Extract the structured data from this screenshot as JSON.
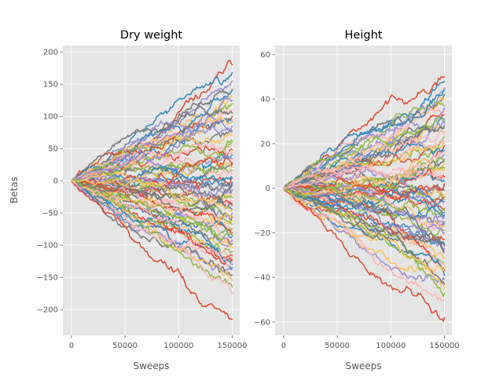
{
  "colors": {
    "background": "#ffffff",
    "axes_face": "#e5e5e5",
    "grid": "#ffffff",
    "tick_text": "#555555",
    "cycle": [
      "#E24A33",
      "#348ABD",
      "#988ED5",
      "#777777",
      "#FBC15E",
      "#8EBA42",
      "#FFB5B8"
    ]
  },
  "chart_data": [
    {
      "type": "line",
      "title": "Dry weight",
      "xlabel": "Sweeps",
      "ylabel": "Betas",
      "xlim": [
        -8000,
        157000
      ],
      "ylim": [
        -240,
        210
      ],
      "xticks": [
        0,
        50000,
        100000,
        150000
      ],
      "xtick_labels": [
        "0",
        "50000",
        "100000",
        "150000"
      ],
      "yticks": [
        -200,
        -150,
        -100,
        -50,
        0,
        50,
        100,
        150,
        200
      ],
      "ytick_labels": [
        "−200",
        "−150",
        "−100",
        "−50",
        "0",
        "50",
        "100",
        "150",
        "200"
      ],
      "grid": true,
      "series_count": 70,
      "x_range": [
        0,
        150000
      ],
      "final_values": [
        180,
        168,
        155,
        142,
        130,
        120,
        110,
        100,
        92,
        85,
        78,
        70,
        62,
        55,
        48,
        40,
        34,
        28,
        22,
        16,
        10,
        4,
        -2,
        -8,
        -14,
        -20,
        -26,
        -32,
        -38,
        -44,
        -50,
        -56,
        -62,
        -68,
        -74,
        -80,
        -86,
        -92,
        -98,
        -104,
        -110,
        -116,
        -122,
        -130,
        -138,
        -146,
        -155,
        -165,
        -175,
        -215,
        140,
        125,
        105,
        95,
        60,
        45,
        25,
        5,
        -15,
        -35,
        -55,
        -75,
        -95,
        -115,
        -135,
        75,
        -5,
        -45,
        -85,
        -125
      ],
      "extremes": {
        "max": 182,
        "min": -218
      }
    },
    {
      "type": "line",
      "title": "Height",
      "xlabel": "Sweeps",
      "ylabel": "",
      "xlim": [
        -8000,
        157000
      ],
      "ylim": [
        -66,
        64
      ],
      "xticks": [
        0,
        50000,
        100000,
        150000
      ],
      "xtick_labels": [
        "0",
        "50000",
        "100000",
        "150000"
      ],
      "yticks": [
        -60,
        -40,
        -20,
        0,
        20,
        40,
        60
      ],
      "ytick_labels": [
        "−60",
        "−40",
        "−20",
        "0",
        "20",
        "40",
        "60"
      ],
      "grid": true,
      "series_count": 70,
      "x_range": [
        0,
        150000
      ],
      "final_values": [
        50,
        48,
        45,
        42,
        40,
        37,
        35,
        33,
        31,
        29,
        27,
        25,
        23,
        21,
        19,
        17,
        15,
        13,
        11,
        9,
        7,
        5,
        3,
        1,
        -1,
        -3,
        -5,
        -7,
        -9,
        -11,
        -13,
        -15,
        -17,
        -19,
        -21,
        -23,
        -25,
        -27,
        -29,
        -31,
        -33,
        -35,
        -37,
        -39,
        -41,
        -43,
        -45,
        -47,
        -50,
        -58,
        44,
        36,
        28,
        20,
        12,
        4,
        -4,
        -12,
        -20,
        -28,
        -36,
        30,
        16,
        2,
        -6,
        -16,
        -26,
        8,
        -10,
        24
      ],
      "extremes": {
        "max": 55,
        "min": -61
      }
    }
  ]
}
